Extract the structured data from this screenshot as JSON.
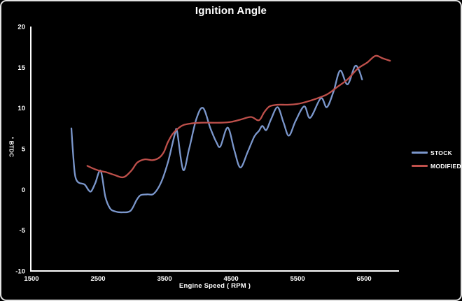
{
  "title": "Ignition Angle",
  "colors": {
    "background": "#000000",
    "frame_border": "#e3e3e3",
    "axis": "#ffffff",
    "text": "#ffffff",
    "stock_line": "#7b97cc",
    "modified_line": "#bf504b"
  },
  "legend": {
    "stock_label": "STOCK",
    "modified_label": "MODIFIED"
  },
  "chart_data": {
    "type": "line",
    "title": "Ignition Angle",
    "xlabel": "Engine Speed ( RPM )",
    "ylabel": "° BTDC",
    "xlim": [
      1500,
      7025
    ],
    "ylim": [
      -10,
      20
    ],
    "x_ticks": [
      1500,
      2500,
      3500,
      4500,
      5500,
      6500
    ],
    "y_ticks": [
      20,
      15,
      10,
      5,
      0,
      -5,
      -10
    ],
    "grid": false,
    "legend_position": "right",
    "series": [
      {
        "name": "STOCK",
        "color": "#7b97cc",
        "points": [
          [
            2100,
            7.5
          ],
          [
            2120,
            5.0
          ],
          [
            2150,
            2.0
          ],
          [
            2180,
            1.1
          ],
          [
            2220,
            0.8
          ],
          [
            2300,
            0.6
          ],
          [
            2360,
            -0.1
          ],
          [
            2400,
            -0.2
          ],
          [
            2460,
            0.8
          ],
          [
            2540,
            2.3
          ],
          [
            2610,
            -0.9
          ],
          [
            2680,
            -2.3
          ],
          [
            2760,
            -2.7
          ],
          [
            2870,
            -2.8
          ],
          [
            2990,
            -2.6
          ],
          [
            3080,
            -1.3
          ],
          [
            3140,
            -0.7
          ],
          [
            3240,
            -0.6
          ],
          [
            3340,
            -0.5
          ],
          [
            3450,
            0.9
          ],
          [
            3550,
            3.3
          ],
          [
            3610,
            5.3
          ],
          [
            3660,
            6.9
          ],
          [
            3690,
            7.1
          ],
          [
            3780,
            2.4
          ],
          [
            3870,
            5.0
          ],
          [
            3980,
            8.7
          ],
          [
            4080,
            10.0
          ],
          [
            4190,
            7.5
          ],
          [
            4280,
            5.8
          ],
          [
            4340,
            5.3
          ],
          [
            4450,
            7.6
          ],
          [
            4550,
            4.8
          ],
          [
            4640,
            2.7
          ],
          [
            4750,
            4.6
          ],
          [
            4850,
            6.5
          ],
          [
            4920,
            7.2
          ],
          [
            4970,
            7.8
          ],
          [
            5030,
            7.3
          ],
          [
            5100,
            8.6
          ],
          [
            5200,
            10.1
          ],
          [
            5290,
            8.2
          ],
          [
            5370,
            6.6
          ],
          [
            5470,
            8.4
          ],
          [
            5600,
            10.2
          ],
          [
            5690,
            8.8
          ],
          [
            5850,
            11.2
          ],
          [
            5940,
            10.1
          ],
          [
            6040,
            12.0
          ],
          [
            6140,
            14.6
          ],
          [
            6250,
            12.9
          ],
          [
            6360,
            15.1
          ],
          [
            6420,
            14.7
          ],
          [
            6470,
            13.5
          ]
        ]
      },
      {
        "name": "MODIFIED",
        "color": "#bf504b",
        "points": [
          [
            2340,
            2.9
          ],
          [
            2420,
            2.6
          ],
          [
            2520,
            2.3
          ],
          [
            2630,
            2.1
          ],
          [
            2740,
            1.8
          ],
          [
            2880,
            1.5
          ],
          [
            3000,
            2.3
          ],
          [
            3090,
            3.3
          ],
          [
            3200,
            3.7
          ],
          [
            3320,
            3.6
          ],
          [
            3420,
            3.9
          ],
          [
            3490,
            4.6
          ],
          [
            3550,
            5.8
          ],
          [
            3620,
            6.8
          ],
          [
            3690,
            7.4
          ],
          [
            3780,
            7.9
          ],
          [
            3900,
            8.1
          ],
          [
            4050,
            8.2
          ],
          [
            4200,
            8.2
          ],
          [
            4350,
            8.2
          ],
          [
            4500,
            8.3
          ],
          [
            4650,
            8.6
          ],
          [
            4800,
            8.9
          ],
          [
            4920,
            8.5
          ],
          [
            5000,
            9.5
          ],
          [
            5080,
            10.2
          ],
          [
            5200,
            10.4
          ],
          [
            5350,
            10.4
          ],
          [
            5500,
            10.5
          ],
          [
            5650,
            10.8
          ],
          [
            5800,
            11.2
          ],
          [
            5950,
            11.7
          ],
          [
            6100,
            12.6
          ],
          [
            6250,
            13.5
          ],
          [
            6400,
            14.8
          ],
          [
            6550,
            15.6
          ],
          [
            6670,
            16.4
          ],
          [
            6780,
            16.1
          ],
          [
            6890,
            15.8
          ]
        ]
      }
    ]
  }
}
